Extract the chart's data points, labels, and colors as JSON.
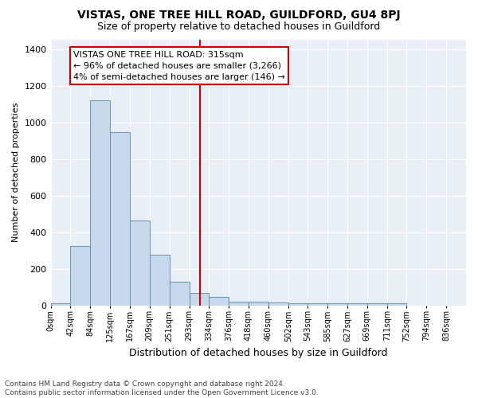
{
  "title": "VISTAS, ONE TREE HILL ROAD, GUILDFORD, GU4 8PJ",
  "subtitle": "Size of property relative to detached houses in Guildford",
  "xlabel": "Distribution of detached houses by size in Guildford",
  "ylabel": "Number of detached properties",
  "hist_left_edges": [
    0,
    42,
    84,
    125,
    167,
    209,
    251,
    293,
    334,
    376,
    418,
    460,
    502,
    543,
    585,
    627,
    669,
    711,
    752,
    794,
    836
  ],
  "hist_heights": [
    10,
    325,
    1120,
    945,
    465,
    275,
    130,
    70,
    45,
    22,
    22,
    15,
    10,
    10,
    10,
    10,
    10,
    10,
    0,
    0,
    0
  ],
  "tick_labels": [
    "0sqm",
    "42sqm",
    "84sqm",
    "125sqm",
    "167sqm",
    "209sqm",
    "251sqm",
    "293sqm",
    "334sqm",
    "376sqm",
    "418sqm",
    "460sqm",
    "502sqm",
    "543sqm",
    "585sqm",
    "627sqm",
    "669sqm",
    "711sqm",
    "752sqm",
    "794sqm",
    "836sqm"
  ],
  "bar_color": "#c8d8eb",
  "bar_edge_color": "#5588aa",
  "vline_x": 315,
  "vline_color": "#cc0000",
  "annotation_text": "VISTAS ONE TREE HILL ROAD: 315sqm\n← 96% of detached houses are smaller (3,266)\n4% of semi-detached houses are larger (146) →",
  "annotation_box_facecolor": "#ffffff",
  "annotation_box_edgecolor": "#cc0000",
  "ylim": [
    0,
    1450
  ],
  "xlim": [
    0,
    878
  ],
  "yticks": [
    0,
    200,
    400,
    600,
    800,
    1000,
    1200,
    1400
  ],
  "footer_text": "Contains HM Land Registry data © Crown copyright and database right 2024.\nContains public sector information licensed under the Open Government Licence v3.0.",
  "bg_color": "#ffffff",
  "plot_bg_color": "#e8eef5",
  "grid_color": "#ffffff",
  "title_fontsize": 10,
  "subtitle_fontsize": 9,
  "ylabel_fontsize": 8,
  "xlabel_fontsize": 9,
  "tick_fontsize": 7,
  "footer_fontsize": 6.5,
  "annotation_fontsize": 8
}
